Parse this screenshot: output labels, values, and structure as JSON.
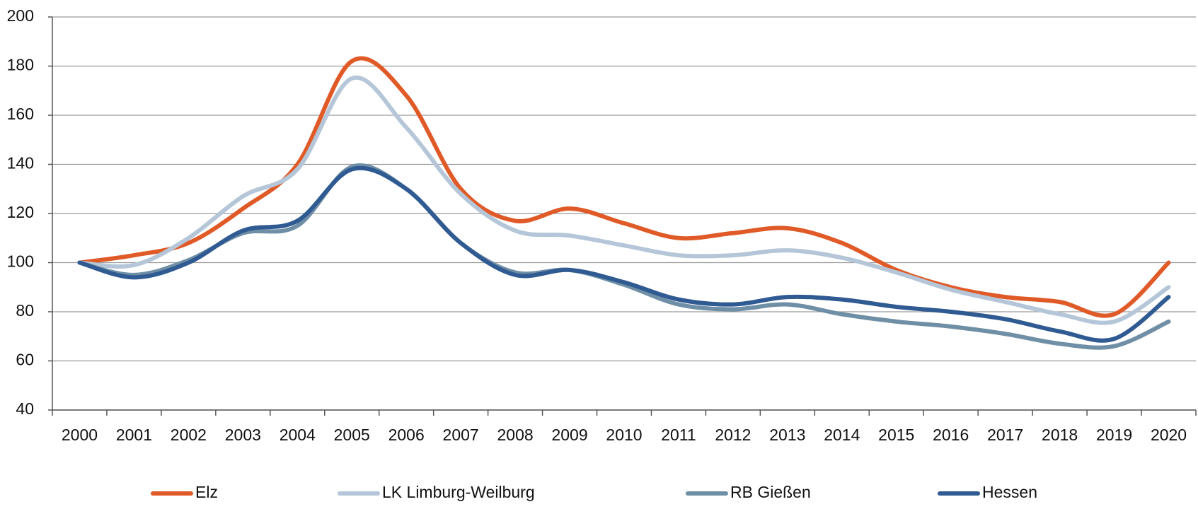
{
  "chart_data": {
    "type": "line",
    "categories": [
      "2000",
      "2001",
      "2002",
      "2003",
      "2004",
      "2005",
      "2006",
      "2007",
      "2008",
      "2009",
      "2010",
      "2011",
      "2012",
      "2013",
      "2014",
      "2015",
      "2016",
      "2017",
      "2018",
      "2019",
      "2020"
    ],
    "series": [
      {
        "name": "Elz",
        "color": "#e05a27",
        "values": [
          100,
          103,
          108,
          122,
          140,
          182,
          168,
          130,
          117,
          122,
          116,
          110,
          112,
          114,
          108,
          97,
          90,
          86,
          84,
          79,
          100
        ]
      },
      {
        "name": "LK Limburg-Weilburg",
        "color": "#b4c6d8",
        "values": [
          100,
          99,
          110,
          127,
          138,
          175,
          155,
          128,
          113,
          111,
          107,
          103,
          103,
          105,
          102,
          96,
          89,
          84,
          79,
          76,
          90
        ]
      },
      {
        "name": "RB Gießen",
        "color": "#6f8fa6",
        "values": [
          100,
          95,
          101,
          112,
          115,
          139,
          130,
          108,
          96,
          97,
          91,
          83,
          81,
          83,
          79,
          76,
          74,
          71,
          67,
          66,
          76
        ]
      },
      {
        "name": "Hessen",
        "color": "#2f5a92",
        "values": [
          100,
          94,
          100,
          113,
          117,
          138,
          130,
          108,
          95,
          97,
          92,
          85,
          83,
          86,
          85,
          82,
          80,
          77,
          72,
          69,
          86
        ]
      }
    ],
    "ylim": [
      40,
      200
    ],
    "yticks": [
      40,
      60,
      80,
      100,
      120,
      140,
      160,
      180,
      200
    ],
    "grid": true,
    "legend": "bottom"
  }
}
